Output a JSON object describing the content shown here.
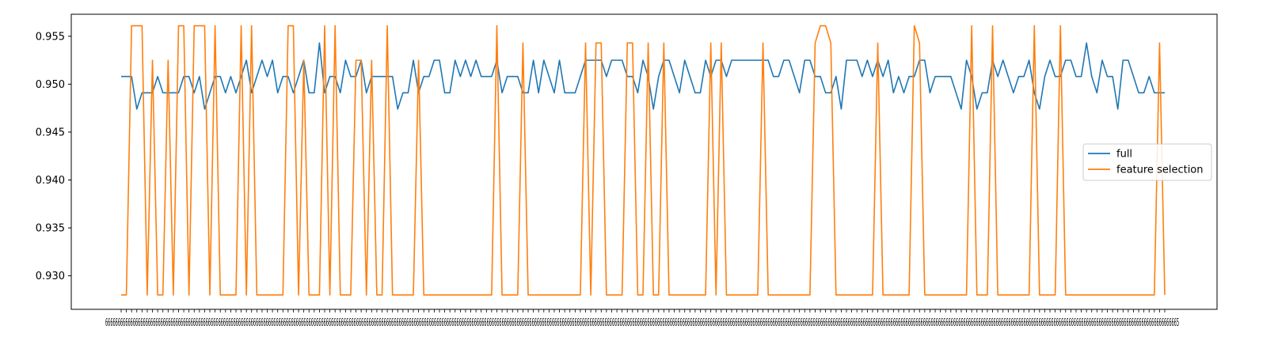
{
  "chart_data": {
    "type": "line",
    "title": "",
    "xlabel": "",
    "ylabel": "",
    "ylim": [
      0.9265,
      0.9573
    ],
    "yticks": [
      "0.930",
      "0.935",
      "0.940",
      "0.945",
      "0.950",
      "0.955"
    ],
    "xtick_text": "66666666666666666666666666666666666666666666666666666666666666666666666666666666666666666666666666666666666666666666666666666666666666666666666666666666666666666666666666666666666666666666666666666666666666666666666666666666666666666666666666666666666666666666666666666666666666666666666666666666666666666666666666666666666666666666666666666666666666666666666666666666666666666666666666666666666666666666666666666666666666666665",
    "grid": false,
    "legend_position": "center-right",
    "series": [
      {
        "name": "full",
        "color": "#1f77b4",
        "values": [
          0.9508,
          0.9508,
          0.9508,
          0.9474,
          0.9491,
          0.9491,
          0.9491,
          0.9508,
          0.9491,
          0.9491,
          0.9491,
          0.9491,
          0.9508,
          0.9508,
          0.9491,
          0.9508,
          0.9474,
          0.9491,
          0.9508,
          0.9508,
          0.9491,
          0.9508,
          0.9491,
          0.9508,
          0.9525,
          0.9491,
          0.9508,
          0.9525,
          0.9508,
          0.9525,
          0.9491,
          0.9508,
          0.9508,
          0.9491,
          0.9508,
          0.9525,
          0.9491,
          0.9491,
          0.9543,
          0.9491,
          0.9508,
          0.9508,
          0.9491,
          0.9525,
          0.9508,
          0.9508,
          0.9525,
          0.9491,
          0.9508,
          0.9508,
          0.9508,
          0.9508,
          0.9508,
          0.9474,
          0.9491,
          0.9491,
          0.9525,
          0.9491,
          0.9508,
          0.9508,
          0.9525,
          0.9525,
          0.9491,
          0.9491,
          0.9525,
          0.9508,
          0.9525,
          0.9508,
          0.9525,
          0.9508,
          0.9508,
          0.9508,
          0.9525,
          0.9491,
          0.9508,
          0.9508,
          0.9508,
          0.9491,
          0.9491,
          0.9525,
          0.9491,
          0.9525,
          0.9508,
          0.9491,
          0.9525,
          0.9491,
          0.9491,
          0.9491,
          0.9508,
          0.9525,
          0.9525,
          0.9525,
          0.9525,
          0.9508,
          0.9525,
          0.9525,
          0.9525,
          0.9508,
          0.9508,
          0.9491,
          0.9525,
          0.9508,
          0.9474,
          0.9508,
          0.9525,
          0.9525,
          0.9508,
          0.9491,
          0.9525,
          0.9508,
          0.9491,
          0.9491,
          0.9525,
          0.9508,
          0.9525,
          0.9525,
          0.9508,
          0.9525,
          0.9525,
          0.9525,
          0.9525,
          0.9525,
          0.9525,
          0.9525,
          0.9525,
          0.9508,
          0.9508,
          0.9525,
          0.9525,
          0.9508,
          0.9491,
          0.9525,
          0.9525,
          0.9508,
          0.9508,
          0.9491,
          0.9491,
          0.9508,
          0.9474,
          0.9525,
          0.9525,
          0.9525,
          0.9508,
          0.9525,
          0.9508,
          0.9525,
          0.9508,
          0.9525,
          0.9491,
          0.9508,
          0.9491,
          0.9508,
          0.9508,
          0.9525,
          0.9525,
          0.9491,
          0.9508,
          0.9508,
          0.9508,
          0.9508,
          0.9491,
          0.9474,
          0.9525,
          0.9508,
          0.9474,
          0.9491,
          0.9491,
          0.9525,
          0.9508,
          0.9525,
          0.9508,
          0.9491,
          0.9508,
          0.9508,
          0.9525,
          0.9491,
          0.9474,
          0.9508,
          0.9525,
          0.9508,
          0.9508,
          0.9525,
          0.9525,
          0.9508,
          0.9508,
          0.9543,
          0.9508,
          0.9491,
          0.9525,
          0.9508,
          0.9508,
          0.9474,
          0.9525,
          0.9525,
          0.9508,
          0.9491,
          0.9491,
          0.9508,
          0.9491,
          0.9491,
          0.9491
        ]
      },
      {
        "name": "feature selection",
        "color": "#ff7f0e",
        "values": [
          0.928,
          0.928,
          0.9561,
          0.9561,
          0.9561,
          0.928,
          0.9525,
          0.928,
          0.928,
          0.9525,
          0.928,
          0.9561,
          0.9561,
          0.928,
          0.9561,
          0.9561,
          0.9561,
          0.928,
          0.9561,
          0.928,
          0.928,
          0.928,
          0.928,
          0.9561,
          0.928,
          0.9561,
          0.928,
          0.928,
          0.928,
          0.928,
          0.928,
          0.928,
          0.9561,
          0.9561,
          0.928,
          0.9525,
          0.928,
          0.928,
          0.928,
          0.9561,
          0.928,
          0.9561,
          0.928,
          0.928,
          0.928,
          0.9525,
          0.9525,
          0.928,
          0.9525,
          0.928,
          0.928,
          0.9561,
          0.928,
          0.928,
          0.928,
          0.928,
          0.928,
          0.9525,
          0.928,
          0.928,
          0.928,
          0.928,
          0.928,
          0.928,
          0.928,
          0.928,
          0.928,
          0.928,
          0.928,
          0.928,
          0.928,
          0.928,
          0.9561,
          0.928,
          0.928,
          0.928,
          0.928,
          0.9543,
          0.928,
          0.928,
          0.928,
          0.928,
          0.928,
          0.928,
          0.928,
          0.928,
          0.928,
          0.928,
          0.928,
          0.9543,
          0.928,
          0.9543,
          0.9543,
          0.928,
          0.928,
          0.928,
          0.928,
          0.9543,
          0.9543,
          0.928,
          0.928,
          0.9543,
          0.928,
          0.928,
          0.9543,
          0.928,
          0.928,
          0.928,
          0.928,
          0.928,
          0.928,
          0.928,
          0.928,
          0.9543,
          0.928,
          0.9543,
          0.928,
          0.928,
          0.928,
          0.928,
          0.928,
          0.928,
          0.928,
          0.9543,
          0.928,
          0.928,
          0.928,
          0.928,
          0.928,
          0.928,
          0.928,
          0.928,
          0.928,
          0.9543,
          0.9561,
          0.9561,
          0.9543,
          0.928,
          0.928,
          0.928,
          0.928,
          0.928,
          0.928,
          0.928,
          0.928,
          0.9543,
          0.928,
          0.928,
          0.928,
          0.928,
          0.928,
          0.928,
          0.9561,
          0.9543,
          0.928,
          0.928,
          0.928,
          0.928,
          0.928,
          0.928,
          0.928,
          0.928,
          0.928,
          0.9561,
          0.928,
          0.928,
          0.928,
          0.9561,
          0.928,
          0.928,
          0.928,
          0.928,
          0.928,
          0.928,
          0.928,
          0.9561,
          0.928,
          0.928,
          0.928,
          0.928,
          0.9561,
          0.928,
          0.928,
          0.928,
          0.928,
          0.928,
          0.928,
          0.928,
          0.928,
          0.928,
          0.928,
          0.928,
          0.928,
          0.928,
          0.928,
          0.928,
          0.928,
          0.928,
          0.928,
          0.9543,
          0.928
        ]
      }
    ]
  }
}
